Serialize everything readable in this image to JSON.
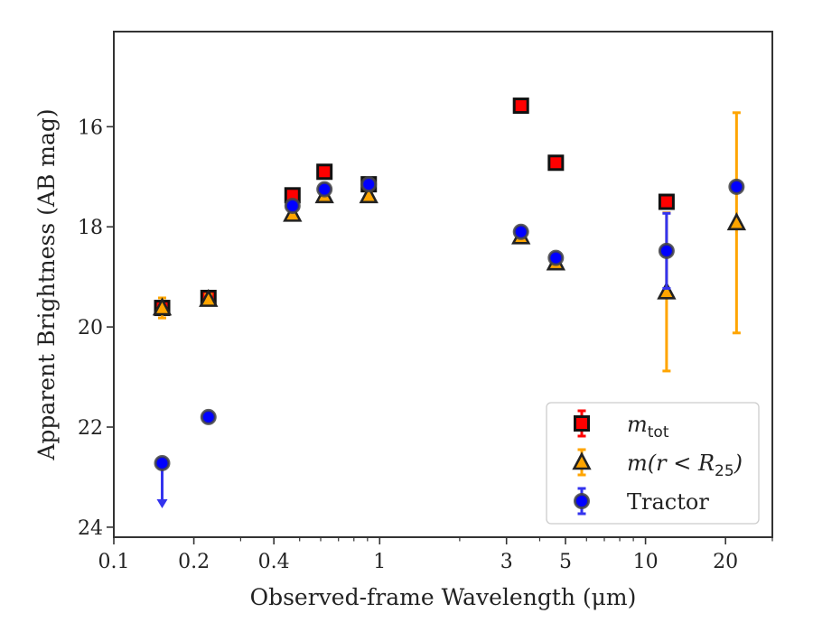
{
  "chart_data": {
    "type": "scatter",
    "title": "",
    "xlabel": "Observed-frame Wavelength (μm)",
    "ylabel": "Apparent Brightness (AB mag)",
    "xscale": "log",
    "xlim": [
      0.1,
      30
    ],
    "ylim": [
      24.2,
      14.1
    ],
    "y_inverted": true,
    "xticks": [
      {
        "value": 0.1,
        "label": "0.1"
      },
      {
        "value": 0.2,
        "label": "0.2"
      },
      {
        "value": 0.4,
        "label": "0.4"
      },
      {
        "value": 1,
        "label": "1"
      },
      {
        "value": 3,
        "label": "3"
      },
      {
        "value": 5,
        "label": "5"
      },
      {
        "value": 10,
        "label": "10"
      },
      {
        "value": 20,
        "label": "20"
      }
    ],
    "yticks": [
      {
        "value": 16,
        "label": "16"
      },
      {
        "value": 18,
        "label": "18"
      },
      {
        "value": 20,
        "label": "20"
      },
      {
        "value": 22,
        "label": "22"
      },
      {
        "value": 24,
        "label": "24"
      }
    ],
    "grid": false,
    "legend_position": "bottom-right",
    "series": [
      {
        "name": "m_tot",
        "marker": "square",
        "color": "#ff0000",
        "edgecolor": "#111111",
        "errcolor": "#ff0000",
        "points": [
          {
            "x": 0.152,
            "y": 19.62,
            "err": 0.1
          },
          {
            "x": 0.227,
            "y": 19.42,
            "err": 0.1
          },
          {
            "x": 0.47,
            "y": 17.37,
            "err": 0.05
          },
          {
            "x": 0.62,
            "y": 16.9,
            "err": 0.05
          },
          {
            "x": 0.91,
            "y": 17.15,
            "err": 0.05
          },
          {
            "x": 3.4,
            "y": 15.58,
            "err": 0.05
          },
          {
            "x": 4.6,
            "y": 16.72,
            "err": 0.05
          },
          {
            "x": 12.0,
            "y": 17.5,
            "err": 0.05
          }
        ]
      },
      {
        "name": "m(r < R25)",
        "marker": "triangle",
        "color": "#ffa500",
        "edgecolor": "#222222",
        "errcolor": "#ffa500",
        "points": [
          {
            "x": 0.152,
            "y": 19.62,
            "err": 0.2
          },
          {
            "x": 0.227,
            "y": 19.45,
            "err": 0.1
          },
          {
            "x": 0.47,
            "y": 17.75,
            "err": 0.05
          },
          {
            "x": 0.62,
            "y": 17.38,
            "err": 0.05
          },
          {
            "x": 0.91,
            "y": 17.38,
            "err": 0.05
          },
          {
            "x": 3.4,
            "y": 18.2,
            "err": 0.05
          },
          {
            "x": 4.6,
            "y": 18.72,
            "err": 0.05
          },
          {
            "x": 12.0,
            "y": 19.3,
            "err": 1.58
          },
          {
            "x": 22.0,
            "y": 17.92,
            "err": 2.2
          }
        ]
      },
      {
        "name": "Tractor",
        "marker": "circle",
        "color": "#0000ff",
        "edgecolor": "#444444",
        "errcolor": "#3333ee",
        "points": [
          {
            "x": 0.152,
            "y": 22.72,
            "err": 0,
            "upper_limit": true
          },
          {
            "x": 0.227,
            "y": 21.8,
            "err": 0.05
          },
          {
            "x": 0.47,
            "y": 17.58,
            "err": 0.05
          },
          {
            "x": 0.62,
            "y": 17.25,
            "err": 0.05
          },
          {
            "x": 0.91,
            "y": 17.15,
            "err": 0.05
          },
          {
            "x": 3.4,
            "y": 18.1,
            "err": 0.05
          },
          {
            "x": 4.6,
            "y": 18.62,
            "err": 0.05
          },
          {
            "x": 12.0,
            "y": 18.48,
            "err": 0.75
          },
          {
            "x": 22.0,
            "y": 17.2,
            "err": 0.05
          }
        ]
      }
    ],
    "legend": [
      {
        "series": "m_tot",
        "label_main": "m",
        "label_sub": "tot"
      },
      {
        "series": "m(r < R25)",
        "label_main": "m(r < R",
        "label_sub": "25",
        "label_end": ")"
      },
      {
        "series": "Tractor",
        "label_main": "Tractor"
      }
    ]
  }
}
